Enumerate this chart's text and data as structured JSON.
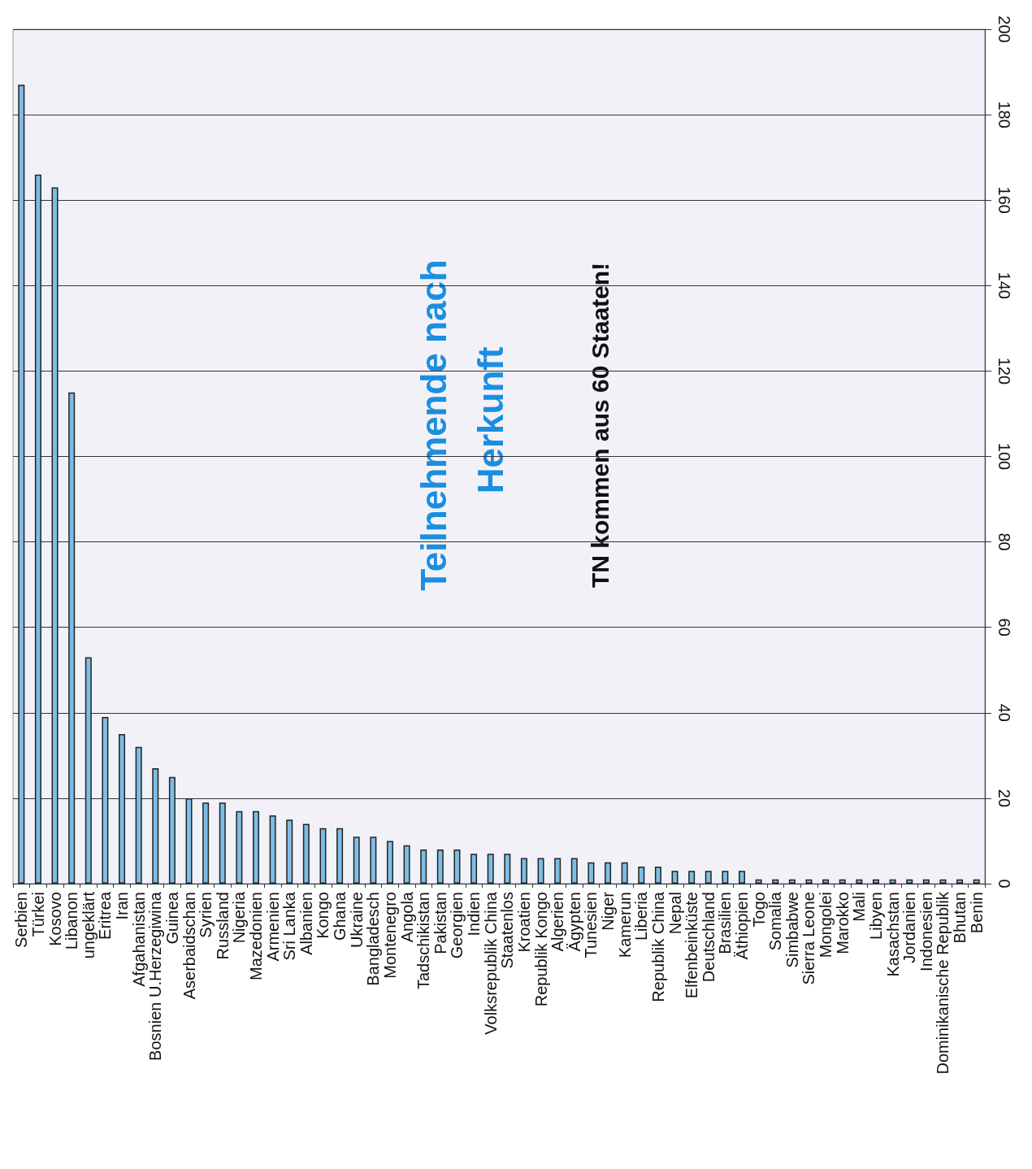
{
  "chart_data": {
    "type": "bar",
    "title": "Teilnehmende nach Herkunft",
    "subtitle": "TN kommen aus 60 Staaten!",
    "categories": [
      "Serbien",
      "Türkei",
      "Kosovo",
      "Libanon",
      "ungeklärt",
      "Eritrea",
      "Iran",
      "Afgahanistan",
      "Bosnien U.Herzegiwina",
      "Guinea",
      "Aserbaidschan",
      "Syrien",
      "Russland",
      "Nigeria",
      "Mazedonien",
      "Armenien",
      "Sri Lanka",
      "Albanien",
      "Kongo",
      "Ghana",
      "Ukraine",
      "Bangladesch",
      "Montenegro",
      "Angola",
      "Tadschikistan",
      "Pakistan",
      "Georgien",
      "Indien",
      "Volksrepublik China",
      "Staatenlos",
      "Kroatien",
      "Republik Kongo",
      "Algerien",
      "Ägypten",
      "Tunesien",
      "Niger",
      "Kamerun",
      "Liberia",
      "Republik China",
      "Nepal",
      "Elfenbeinküste",
      "Deutschland",
      "Brasilien",
      "Äthiopien",
      "Togo",
      "Somalia",
      "Simbabwe",
      "Sierra Leone",
      "Mongolei",
      "Marokko",
      "Mali",
      "Libyen",
      "Kasachstan",
      "Jordanien",
      "Indonesien",
      "Dominikanische Republik",
      "Bhutan",
      "Benin"
    ],
    "values": [
      187,
      166,
      163,
      115,
      53,
      39,
      35,
      32,
      27,
      25,
      20,
      19,
      19,
      17,
      17,
      16,
      15,
      14,
      13,
      13,
      11,
      11,
      10,
      9,
      8,
      8,
      8,
      7,
      7,
      7,
      6,
      6,
      6,
      6,
      5,
      5,
      5,
      4,
      4,
      3,
      3,
      3,
      3,
      3,
      1,
      1,
      1,
      1,
      1,
      1,
      1,
      1,
      1,
      1,
      1,
      1,
      1,
      1
    ],
    "color": "#7dbde6",
    "ylim": [
      0,
      200
    ],
    "yticks": [
      0,
      20,
      40,
      60,
      80,
      100,
      120,
      140,
      160,
      180,
      200
    ],
    "grid": "y"
  }
}
